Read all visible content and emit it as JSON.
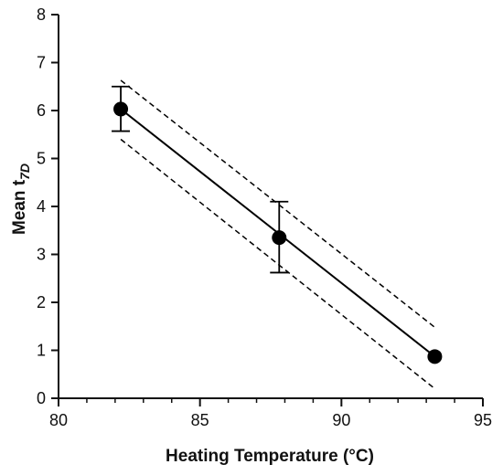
{
  "chart_data": {
    "type": "scatter",
    "xlabel": "Heating Temperature (°C)",
    "ylabel_main": "Mean t",
    "ylabel_sub": "7D",
    "xlim": [
      80,
      95
    ],
    "ylim": [
      0,
      8
    ],
    "xticks": [
      80,
      85,
      90,
      95
    ],
    "yticks": [
      0,
      1,
      2,
      3,
      4,
      5,
      6,
      7,
      8
    ],
    "x_minor_step": 1,
    "grid": false,
    "legend": "none",
    "points": [
      {
        "x": 82.2,
        "y": 6.03,
        "err_low": 5.57,
        "err_high": 6.5
      },
      {
        "x": 87.8,
        "y": 3.35,
        "err_low": 2.62,
        "err_high": 4.1
      },
      {
        "x": 93.3,
        "y": 0.87
      }
    ],
    "fit_line": {
      "x": [
        82.2,
        93.3
      ],
      "y": [
        6.03,
        0.87
      ],
      "style": "solid"
    },
    "confidence_band": {
      "style": "dashed",
      "upper": {
        "x": [
          82.2,
          93.3
        ],
        "y": [
          6.63,
          1.48
        ]
      },
      "lower": {
        "x": [
          82.2,
          93.3
        ],
        "y": [
          5.4,
          0.2
        ]
      }
    },
    "colors": {
      "marks": "#000000",
      "axes": "#111111"
    }
  }
}
